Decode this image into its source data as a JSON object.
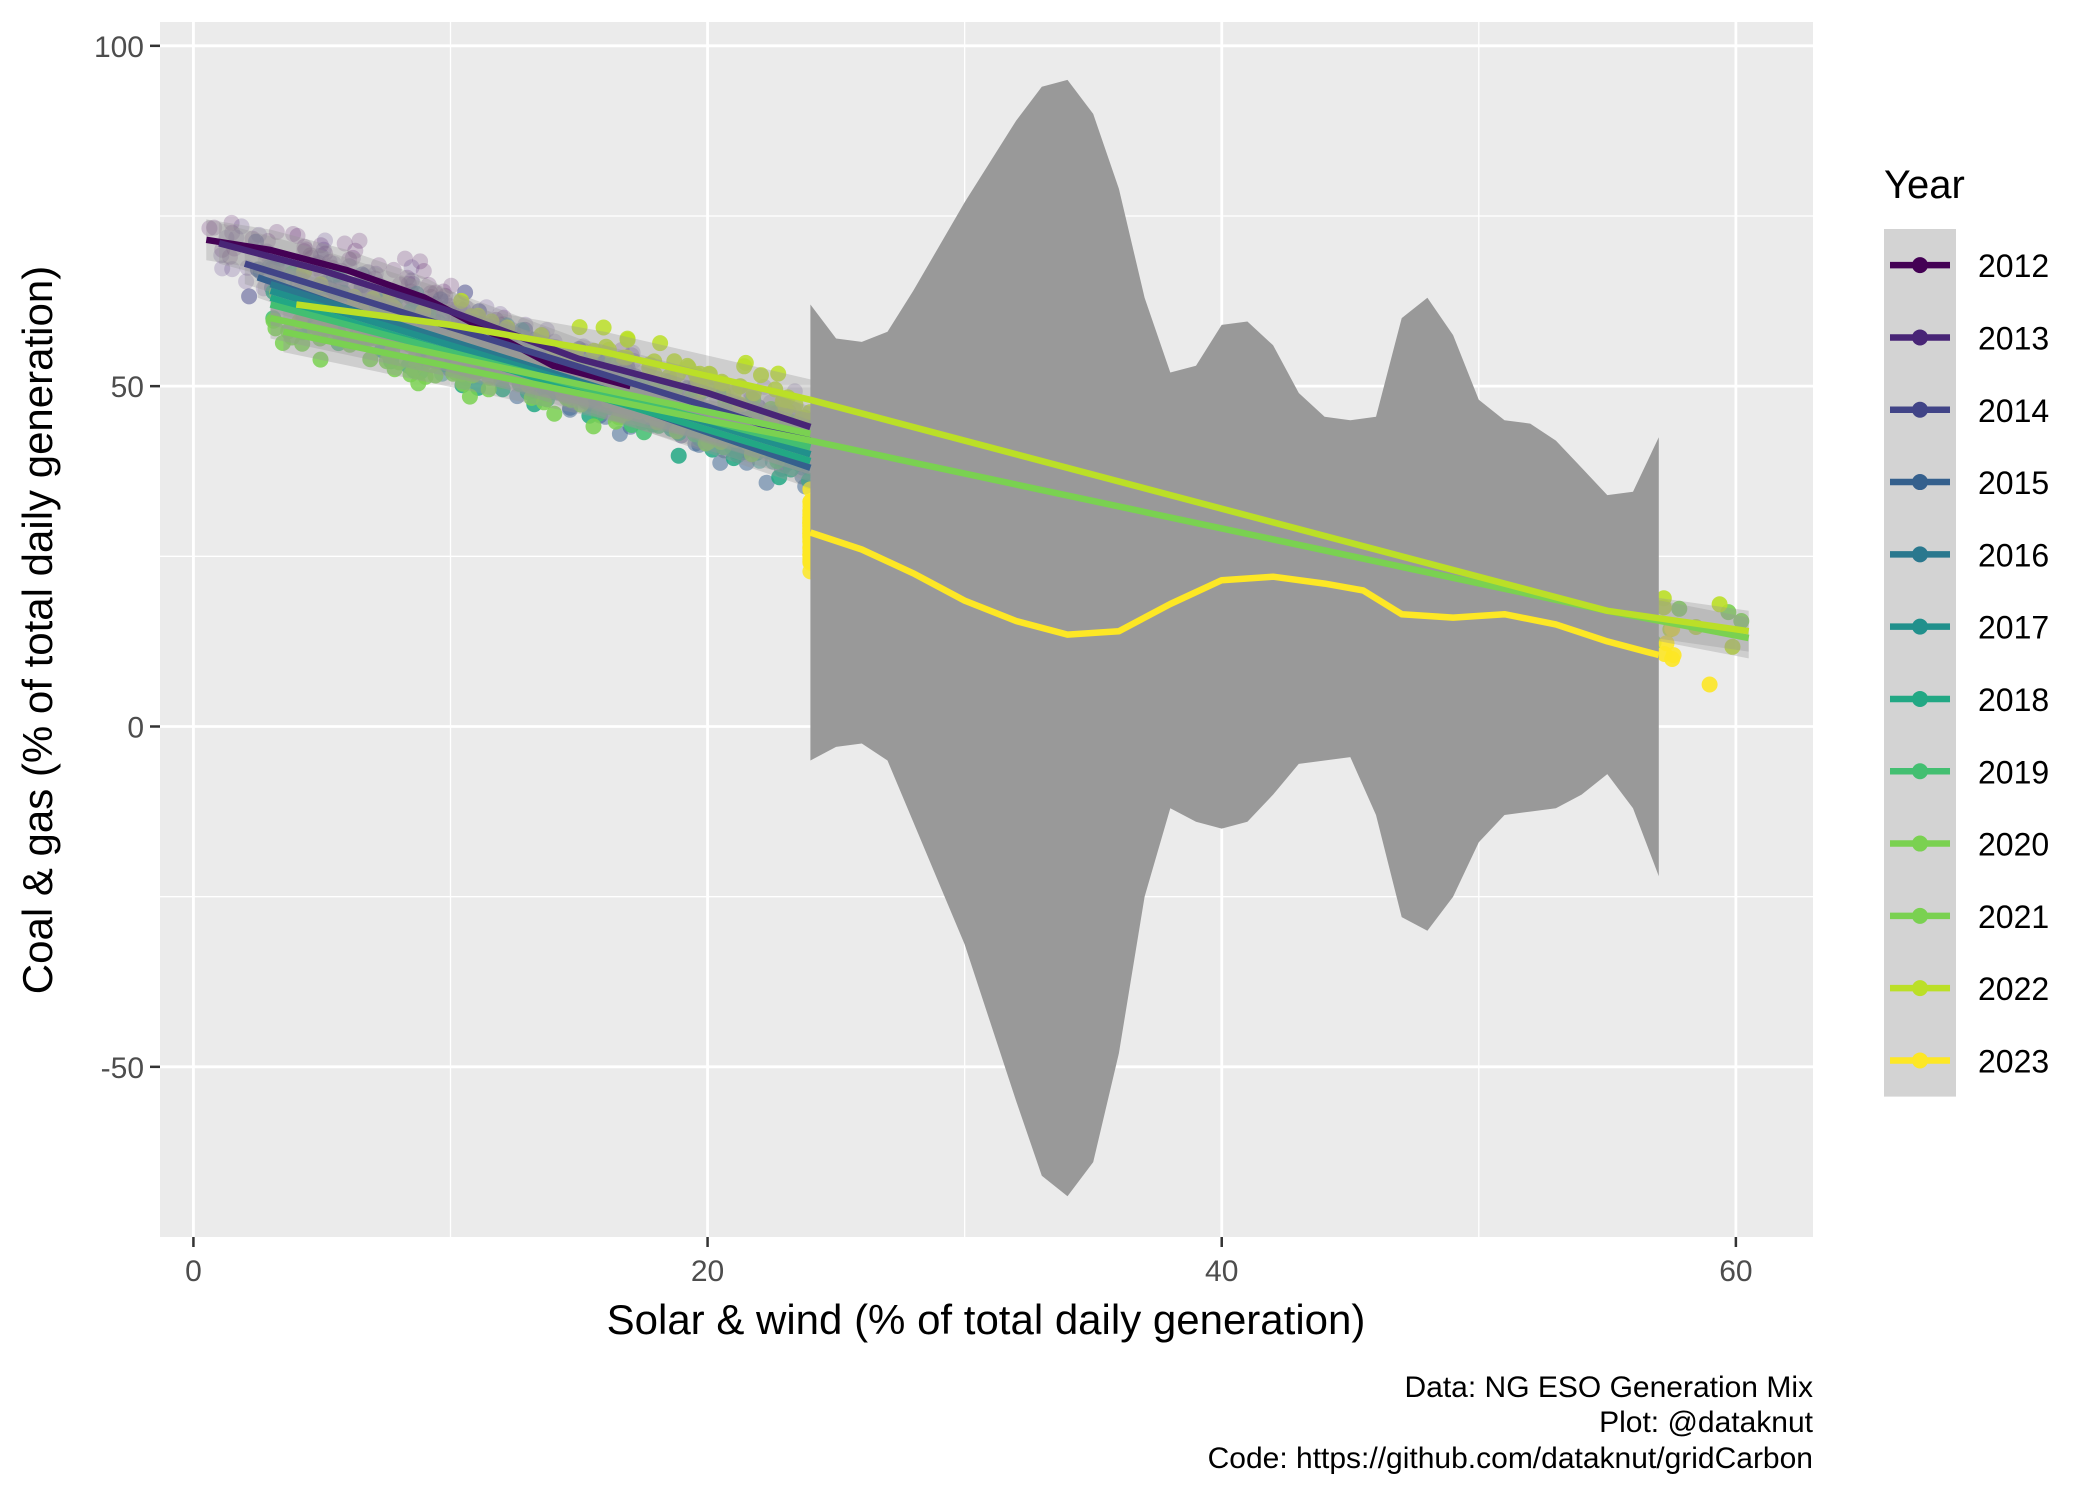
{
  "chart_data": {
    "type": "scatter",
    "xlabel": "Solar & wind (% of total daily generation)",
    "ylabel": "Coal & gas (% of total daily generation)",
    "xlim": [
      -1.3,
      63
    ],
    "ylim": [
      -75,
      103.5
    ],
    "x_ticks": [
      0,
      20,
      40,
      60
    ],
    "y_ticks": [
      -50,
      0,
      50,
      100
    ],
    "grid": true,
    "legend": {
      "title": "Year",
      "position": "right",
      "entries": [
        "2012",
        "2013",
        "2014",
        "2015",
        "2016",
        "2017",
        "2018",
        "2019",
        "2020",
        "2021",
        "2022",
        "2023"
      ]
    },
    "colors": {
      "2012": "#440154",
      "2013": "#482576",
      "2014": "#414487",
      "2015": "#35608D",
      "2016": "#2A788E",
      "2017": "#21908C",
      "2018": "#22A884",
      "2019": "#43BF71",
      "2020": "#7AD151",
      "2021": "#7AD151",
      "2022": "#BBDF27",
      "2023": "#FDE725"
    },
    "series": [
      {
        "name": "2012",
        "x_range": [
          0.5,
          17
        ],
        "trend": [
          [
            0.5,
            71.5
          ],
          [
            3,
            70
          ],
          [
            6,
            67
          ],
          [
            9,
            63
          ],
          [
            12,
            57
          ],
          [
            14,
            53
          ],
          [
            17,
            50
          ]
        ]
      },
      {
        "name": "2013",
        "x_range": [
          1,
          24
        ],
        "trend": [
          [
            1,
            71
          ],
          [
            5,
            67
          ],
          [
            10,
            61
          ],
          [
            15,
            54
          ],
          [
            20,
            49
          ],
          [
            24,
            44
          ]
        ]
      },
      {
        "name": "2014",
        "x_range": [
          2,
          24
        ],
        "trend": [
          [
            2,
            68
          ],
          [
            8,
            61
          ],
          [
            14,
            54
          ],
          [
            20,
            47
          ],
          [
            24,
            42
          ]
        ]
      },
      {
        "name": "2015",
        "x_range": [
          2.5,
          24
        ],
        "trend": [
          [
            2.5,
            66
          ],
          [
            24,
            38
          ]
        ]
      },
      {
        "name": "2016",
        "x_range": [
          3,
          24
        ],
        "trend": [
          [
            3,
            65
          ],
          [
            24,
            40
          ]
        ]
      },
      {
        "name": "2017",
        "x_range": [
          3,
          24
        ],
        "trend": [
          [
            3,
            64
          ],
          [
            24,
            40
          ]
        ]
      },
      {
        "name": "2018",
        "x_range": [
          3,
          24
        ],
        "trend": [
          [
            3,
            63
          ],
          [
            24,
            39
          ]
        ]
      },
      {
        "name": "2019",
        "x_range": [
          3,
          24
        ],
        "trend": [
          [
            3,
            62
          ],
          [
            24,
            41
          ]
        ]
      },
      {
        "name": "2020",
        "x_range": [
          3,
          24
        ],
        "trend": [
          [
            3,
            60
          ],
          [
            24,
            43
          ]
        ]
      },
      {
        "name": "2021",
        "x_range": [
          3.5,
          60.5
        ],
        "trend": [
          [
            3.5,
            58
          ],
          [
            20,
            45
          ],
          [
            24,
            42
          ],
          [
            55,
            17
          ],
          [
            60.5,
            13
          ]
        ]
      },
      {
        "name": "2022",
        "x_range": [
          4,
          60.5
        ],
        "trend": [
          [
            4,
            62
          ],
          [
            10,
            59
          ],
          [
            16,
            55
          ],
          [
            24,
            48
          ],
          [
            55,
            17
          ],
          [
            60.5,
            14
          ]
        ]
      },
      {
        "name": "2023",
        "x_range": [
          24,
          57
        ],
        "trend": [
          [
            24,
            28.5
          ],
          [
            26,
            26
          ],
          [
            28,
            22.5
          ],
          [
            30,
            18.5
          ],
          [
            32,
            15.5
          ],
          [
            34,
            13.5
          ],
          [
            36,
            14
          ],
          [
            38,
            18
          ],
          [
            40,
            21.5
          ],
          [
            42,
            22
          ],
          [
            44,
            21
          ],
          [
            45.5,
            20
          ],
          [
            47,
            16.5
          ],
          [
            49,
            16
          ],
          [
            51,
            16.5
          ],
          [
            53,
            15
          ],
          [
            55,
            12.5
          ],
          [
            57,
            10.5
          ]
        ],
        "ci_upper": [
          [
            24,
            62
          ],
          [
            25,
            57
          ],
          [
            26,
            56.5
          ],
          [
            27,
            58
          ],
          [
            28,
            64
          ],
          [
            30,
            77
          ],
          [
            32,
            89
          ],
          [
            33,
            94
          ],
          [
            34,
            95
          ],
          [
            35,
            90
          ],
          [
            36,
            79
          ],
          [
            37,
            63
          ],
          [
            38,
            52
          ],
          [
            39,
            53
          ],
          [
            40,
            59
          ],
          [
            41,
            59.5
          ],
          [
            42,
            56
          ],
          [
            43,
            49
          ],
          [
            44,
            45.5
          ],
          [
            45,
            45
          ],
          [
            46,
            45.5
          ],
          [
            47,
            60
          ],
          [
            48,
            63
          ],
          [
            49,
            57.5
          ],
          [
            50,
            48
          ],
          [
            51,
            45
          ],
          [
            52,
            44.5
          ],
          [
            53,
            42
          ],
          [
            54,
            38
          ],
          [
            55,
            34
          ],
          [
            56,
            34.5
          ],
          [
            57,
            42.5
          ]
        ],
        "ci_lower": [
          [
            24,
            -5
          ],
          [
            25,
            -3
          ],
          [
            26,
            -2.5
          ],
          [
            27,
            -5
          ],
          [
            28,
            -14
          ],
          [
            30,
            -32
          ],
          [
            32,
            -55
          ],
          [
            33,
            -66
          ],
          [
            34,
            -69
          ],
          [
            35,
            -64
          ],
          [
            36,
            -48
          ],
          [
            37,
            -25
          ],
          [
            38,
            -12
          ],
          [
            39,
            -14
          ],
          [
            40,
            -15
          ],
          [
            41,
            -14
          ],
          [
            42,
            -10
          ],
          [
            43,
            -5.5
          ],
          [
            44,
            -5
          ],
          [
            45,
            -4.5
          ],
          [
            46,
            -13
          ],
          [
            47,
            -28
          ],
          [
            48,
            -30
          ],
          [
            49,
            -25
          ],
          [
            50,
            -17
          ],
          [
            51,
            -13
          ],
          [
            52,
            -12.5
          ],
          [
            53,
            -12
          ],
          [
            54,
            -10
          ],
          [
            55,
            -7
          ],
          [
            56,
            -12
          ],
          [
            57,
            -22
          ]
        ]
      }
    ],
    "annotations": [
      "Data: NG ESO Generation Mix",
      "Plot: @dataknut",
      "Code: https://github.com/dataknut/gridCarbon"
    ]
  }
}
